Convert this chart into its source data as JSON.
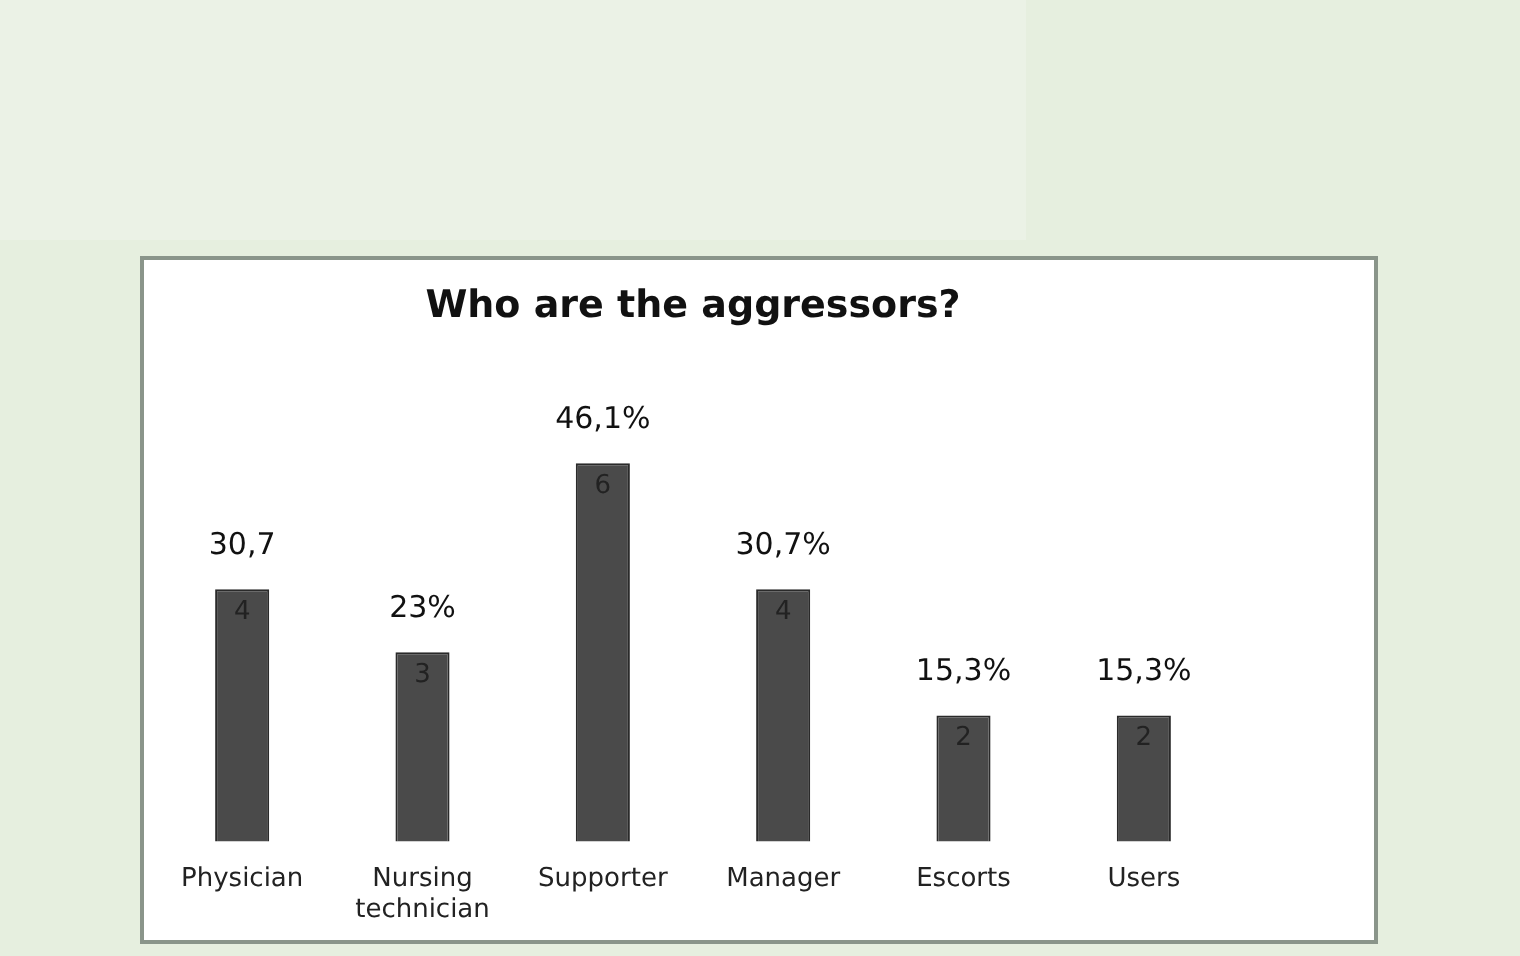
{
  "chart_data": {
    "type": "bar",
    "title": "Who are the aggressors?",
    "categories": [
      "Physician",
      "Nursing technician",
      "Supporter",
      "Manager",
      "Escorts",
      "Users"
    ],
    "values": [
      4,
      3,
      6,
      4,
      2,
      2
    ],
    "color": "#4a4a4a",
    "data_labels": true,
    "annotations": [
      {
        "text": "30,7",
        "x": "Physician",
        "y": 4
      },
      {
        "text": "23%",
        "x": "Nursing technician",
        "y": 3
      },
      {
        "text": "46,1%",
        "x": "Supporter",
        "y": 6
      },
      {
        "text": "30,7%",
        "x": "Manager",
        "y": 4
      },
      {
        "text": "15,3%",
        "x": "Escorts",
        "y": 2
      },
      {
        "text": "15,3%",
        "x": "Users",
        "y": 2
      }
    ]
  }
}
